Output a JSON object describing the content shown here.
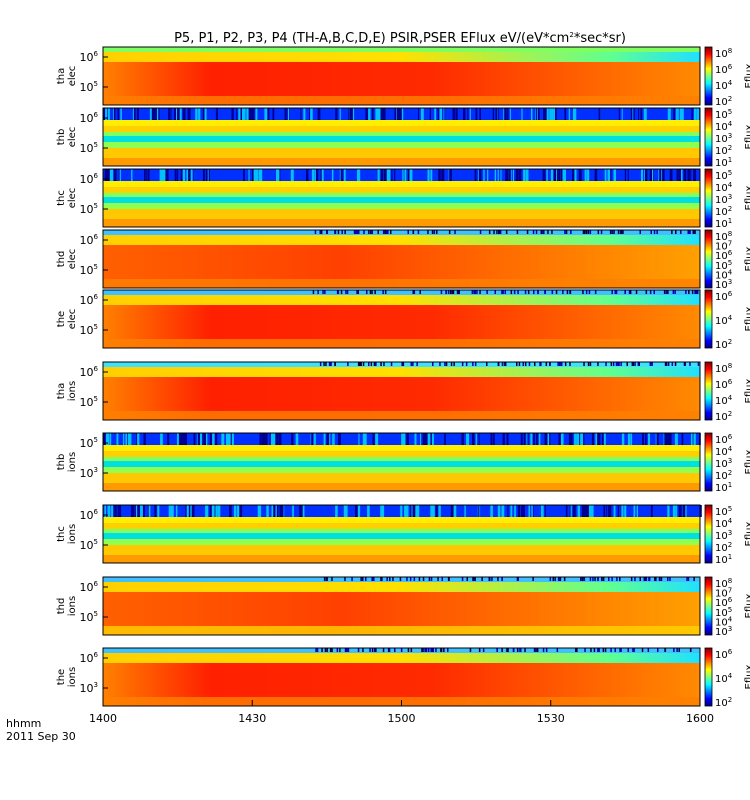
{
  "title_parts": [
    "P5, P1, P2, P3, P4 (TH-A,B,C,D,E) PSIR,PSER EFlux eV/(eV*cm",
    "2",
    "*sec*sr)"
  ],
  "colors": {
    "jet": [
      "#000080",
      "#0000ff",
      "#0080ff",
      "#00ffff",
      "#80ff80",
      "#ffff00",
      "#ff8000",
      "#ff0000",
      "#800000"
    ]
  },
  "xaxis": {
    "label_line1": "hhmm",
    "label_line2": "2011 Sep 30",
    "ticks": [
      "1400",
      "1430",
      "1500",
      "1530",
      "1600"
    ],
    "range": [
      1400,
      1600
    ]
  },
  "chart_data": {
    "type": "heatmap",
    "colorbar_label": "Eflux",
    "panels": [
      {
        "probe": "tha",
        "species": "elec",
        "ytick_exps": [
          "6",
          "5"
        ],
        "cbar_exps": [
          "8",
          "6",
          "4",
          "2"
        ],
        "background": "green",
        "dark_top_rows": "none",
        "hot_core": "strong",
        "fade_to": "orange"
      },
      {
        "probe": "thb",
        "species": "elec",
        "ytick_exps": [
          "6",
          "5"
        ],
        "cbar_exps": [
          "5",
          "4",
          "3",
          "2",
          "1"
        ],
        "background": "banded",
        "dark_top_rows": "noisy-blue",
        "hot_core": "none",
        "fade_to": "yellow"
      },
      {
        "probe": "thc",
        "species": "elec",
        "ytick_exps": [
          "6",
          "5"
        ],
        "cbar_exps": [
          "5",
          "4",
          "3",
          "2",
          "1"
        ],
        "background": "banded",
        "dark_top_rows": "noisy-blue",
        "hot_core": "none",
        "fade_to": "yellow"
      },
      {
        "probe": "thd",
        "species": "elec",
        "ytick_exps": [
          "6",
          "5"
        ],
        "cbar_exps": [
          "8",
          "7",
          "6",
          "5",
          "4",
          "3"
        ],
        "background": "orange",
        "dark_top_rows": "dark-edge",
        "hot_core": "medium",
        "fade_to": "orange"
      },
      {
        "probe": "the",
        "species": "elec",
        "ytick_exps": [
          "6",
          "5"
        ],
        "cbar_exps": [
          "6",
          "4",
          "2"
        ],
        "background": "orange",
        "dark_top_rows": "dark-edge",
        "hot_core": "strong",
        "fade_to": "orange"
      },
      {
        "probe": "tha",
        "species": "ions",
        "ytick_exps": [
          "6",
          "5"
        ],
        "cbar_exps": [
          "8",
          "6",
          "4",
          "2"
        ],
        "background": "green",
        "dark_top_rows": "cyan",
        "hot_core": "strong",
        "fade_to": "orange"
      },
      {
        "probe": "thb",
        "species": "ions",
        "ytick_exps": [
          "5",
          "3"
        ],
        "cbar_exps": [
          "6",
          "4",
          "3",
          "2",
          "1"
        ],
        "background": "banded",
        "dark_top_rows": "noisy-blue",
        "hot_core": "none",
        "fade_to": "yellow"
      },
      {
        "probe": "thc",
        "species": "ions",
        "ytick_exps": [
          "6",
          "5"
        ],
        "cbar_exps": [
          "5",
          "4",
          "3",
          "2",
          "1"
        ],
        "background": "banded",
        "dark_top_rows": "noisy-blue",
        "hot_core": "none",
        "fade_to": "yellow"
      },
      {
        "probe": "thd",
        "species": "ions",
        "ytick_exps": [
          "6",
          "5"
        ],
        "cbar_exps": [
          "8",
          "7",
          "6",
          "5",
          "4",
          "3"
        ],
        "background": "cyan",
        "dark_top_rows": "dark-edge",
        "hot_core": "medium",
        "fade_to": "yellow"
      },
      {
        "probe": "the",
        "species": "ions",
        "ytick_exps": [
          "6",
          "3"
        ],
        "cbar_exps": [
          "6",
          "4",
          "2"
        ],
        "background": "green",
        "dark_top_rows": "dark-edge",
        "hot_core": "strong",
        "fade_to": "orange"
      }
    ]
  }
}
